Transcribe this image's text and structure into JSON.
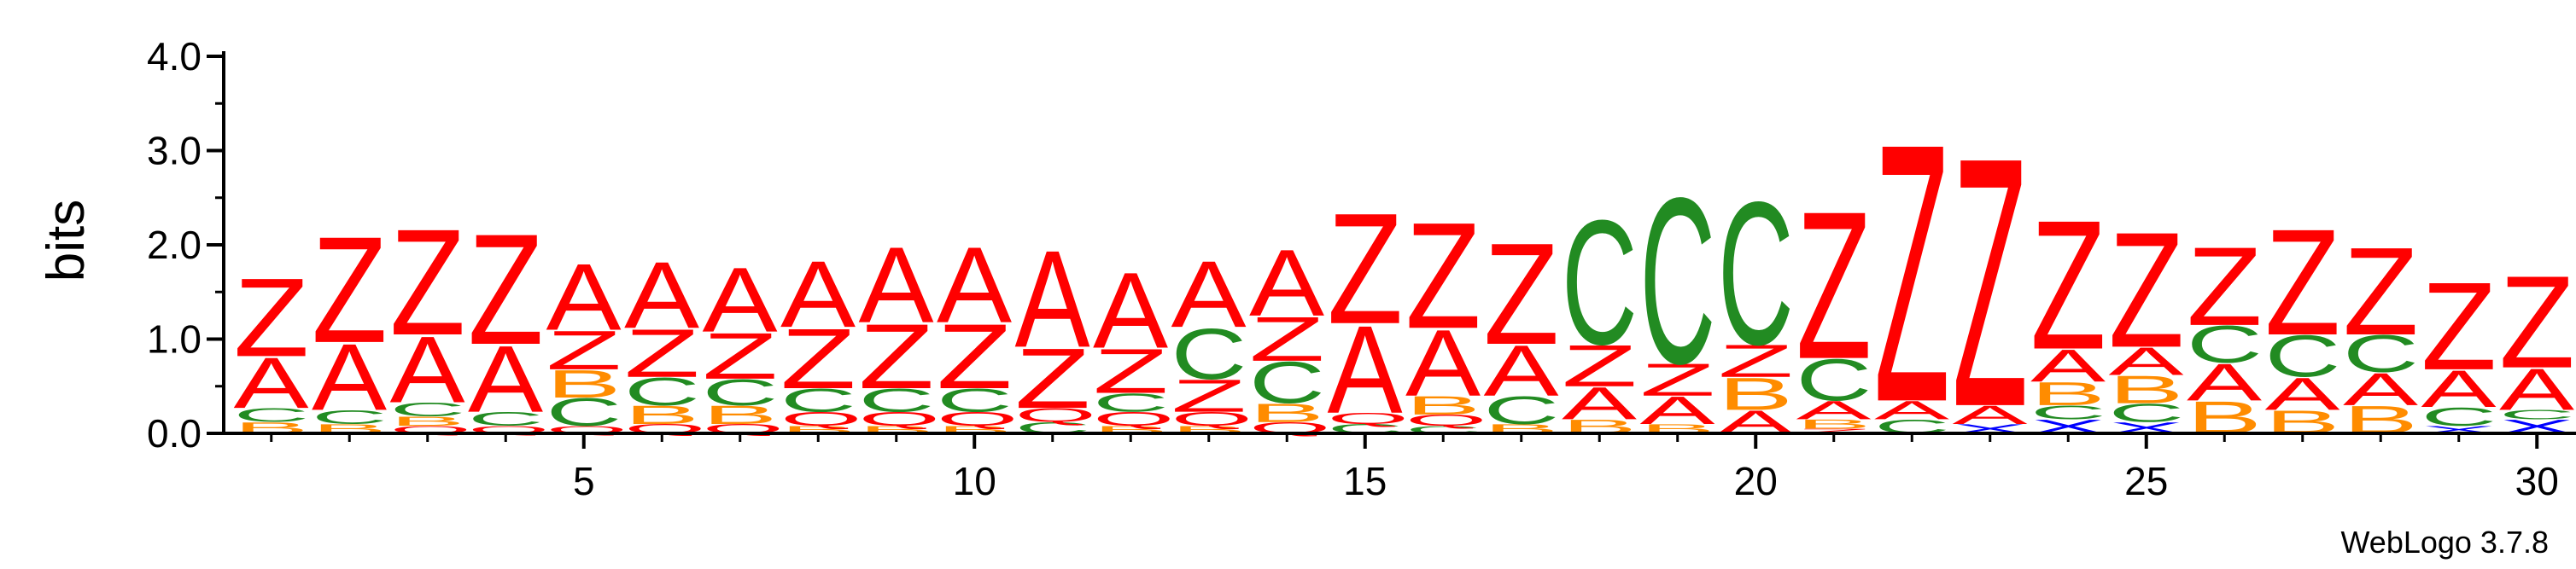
{
  "chart_data": {
    "type": "sequence-logo",
    "ylabel": "bits",
    "ylim": [
      0,
      4.0
    ],
    "y_ticks": [
      "0.0",
      "1.0",
      "2.0",
      "3.0",
      "4.0"
    ],
    "x_ticks": [
      "5",
      "10",
      "15",
      "20",
      "25",
      "30"
    ],
    "x_tick_values": [
      5,
      10,
      15,
      20,
      25,
      30
    ],
    "positions_count": 30,
    "credit": "WebLogo 3.7.8",
    "colors": {
      "Z": "#ff0000",
      "A": "#ff0000",
      "Q": "#ff0000",
      "C": "#228b22",
      "B": "#ff8c00",
      "X": "#0000ff"
    },
    "stacks": [
      {
        "position": 1,
        "letters": [
          [
            "B",
            0.12
          ],
          [
            "C",
            0.15
          ],
          [
            "A",
            0.55
          ],
          [
            "Z",
            0.85
          ]
        ]
      },
      {
        "position": 2,
        "letters": [
          [
            "B",
            0.1
          ],
          [
            "C",
            0.15
          ],
          [
            "A",
            0.72
          ],
          [
            "Z",
            1.15
          ]
        ]
      },
      {
        "position": 3,
        "letters": [
          [
            "Q",
            0.08
          ],
          [
            "B",
            0.1
          ],
          [
            "C",
            0.15
          ],
          [
            "A",
            0.72
          ],
          [
            "Z",
            1.15
          ]
        ]
      },
      {
        "position": 4,
        "letters": [
          [
            "Q",
            0.08
          ],
          [
            "C",
            0.15
          ],
          [
            "A",
            0.72
          ],
          [
            "Z",
            1.2
          ]
        ]
      },
      {
        "position": 5,
        "letters": [
          [
            "Q",
            0.08
          ],
          [
            "C",
            0.3
          ],
          [
            "B",
            0.3
          ],
          [
            "Z",
            0.42
          ],
          [
            "A",
            0.72
          ]
        ]
      },
      {
        "position": 6,
        "letters": [
          [
            "Q",
            0.1
          ],
          [
            "B",
            0.2
          ],
          [
            "C",
            0.3
          ],
          [
            "Z",
            0.52
          ],
          [
            "A",
            0.72
          ]
        ]
      },
      {
        "position": 7,
        "letters": [
          [
            "Q",
            0.1
          ],
          [
            "B",
            0.2
          ],
          [
            "C",
            0.28
          ],
          [
            "Z",
            0.5
          ],
          [
            "A",
            0.7
          ]
        ]
      },
      {
        "position": 8,
        "letters": [
          [
            "B",
            0.08
          ],
          [
            "Q",
            0.15
          ],
          [
            "C",
            0.25
          ],
          [
            "Z",
            0.65
          ],
          [
            "A",
            0.72
          ]
        ]
      },
      {
        "position": 9,
        "letters": [
          [
            "B",
            0.08
          ],
          [
            "Q",
            0.15
          ],
          [
            "C",
            0.25
          ],
          [
            "Z",
            0.7
          ],
          [
            "A",
            0.82
          ]
        ]
      },
      {
        "position": 10,
        "letters": [
          [
            "B",
            0.08
          ],
          [
            "Q",
            0.15
          ],
          [
            "C",
            0.25
          ],
          [
            "Z",
            0.7
          ],
          [
            "A",
            0.82
          ]
        ]
      },
      {
        "position": 11,
        "letters": [
          [
            "C",
            0.12
          ],
          [
            "Q",
            0.15
          ],
          [
            "Z",
            0.65
          ],
          [
            "A",
            1.05
          ]
        ]
      },
      {
        "position": 12,
        "letters": [
          [
            "B",
            0.08
          ],
          [
            "Q",
            0.15
          ],
          [
            "C",
            0.2
          ],
          [
            "Z",
            0.48
          ],
          [
            "A",
            0.82
          ]
        ]
      },
      {
        "position": 13,
        "letters": [
          [
            "B",
            0.08
          ],
          [
            "Q",
            0.15
          ],
          [
            "Z",
            0.35
          ],
          [
            "C",
            0.55
          ],
          [
            "A",
            0.72
          ]
        ]
      },
      {
        "position": 14,
        "letters": [
          [
            "Q",
            0.12
          ],
          [
            "B",
            0.2
          ],
          [
            "C",
            0.45
          ],
          [
            "Z",
            0.48
          ],
          [
            "A",
            0.72
          ]
        ]
      },
      {
        "position": 15,
        "letters": [
          [
            "C",
            0.1
          ],
          [
            "Q",
            0.12
          ],
          [
            "A",
            0.95
          ],
          [
            "Z",
            1.2
          ]
        ]
      },
      {
        "position": 16,
        "letters": [
          [
            "C",
            0.08
          ],
          [
            "Q",
            0.12
          ],
          [
            "B",
            0.2
          ],
          [
            "A",
            0.72
          ],
          [
            "Z",
            1.15
          ]
        ]
      },
      {
        "position": 17,
        "letters": [
          [
            "B",
            0.1
          ],
          [
            "C",
            0.3
          ],
          [
            "A",
            0.55
          ],
          [
            "Z",
            1.1
          ]
        ]
      },
      {
        "position": 18,
        "letters": [
          [
            "B",
            0.15
          ],
          [
            "A",
            0.35
          ],
          [
            "Z",
            0.45
          ],
          [
            "C",
            1.35
          ]
        ]
      },
      {
        "position": 19,
        "letters": [
          [
            "B",
            0.1
          ],
          [
            "A",
            0.3
          ],
          [
            "Z",
            0.35
          ],
          [
            "C",
            1.8
          ]
        ]
      },
      {
        "position": 20,
        "letters": [
          [
            "A",
            0.25
          ],
          [
            "B",
            0.35
          ],
          [
            "Z",
            0.35
          ],
          [
            "C",
            1.55
          ]
        ]
      },
      {
        "position": 21,
        "letters": [
          [
            "Z",
            0.05
          ],
          [
            "B",
            0.1
          ],
          [
            "A",
            0.2
          ],
          [
            "C",
            0.45
          ],
          [
            "Z",
            1.6
          ]
        ]
      },
      {
        "position": 22,
        "letters": [
          [
            "C",
            0.15
          ],
          [
            "A",
            0.2
          ],
          [
            "Z",
            2.8
          ]
        ]
      },
      {
        "position": 23,
        "letters": [
          [
            "X",
            0.1
          ],
          [
            "A",
            0.2
          ],
          [
            "Z",
            2.7
          ]
        ]
      },
      {
        "position": 24,
        "letters": [
          [
            "X",
            0.15
          ],
          [
            "C",
            0.15
          ],
          [
            "B",
            0.25
          ],
          [
            "A",
            0.35
          ],
          [
            "Z",
            1.4
          ]
        ]
      },
      {
        "position": 25,
        "letters": [
          [
            "X",
            0.12
          ],
          [
            "C",
            0.2
          ],
          [
            "B",
            0.3
          ],
          [
            "A",
            0.3
          ],
          [
            "Z",
            1.25
          ]
        ]
      },
      {
        "position": 26,
        "letters": [
          [
            "B",
            0.35
          ],
          [
            "A",
            0.4
          ],
          [
            "C",
            0.4
          ],
          [
            "Z",
            0.85
          ]
        ]
      },
      {
        "position": 27,
        "letters": [
          [
            "B",
            0.25
          ],
          [
            "A",
            0.35
          ],
          [
            "C",
            0.45
          ],
          [
            "Z",
            1.15
          ]
        ]
      },
      {
        "position": 28,
        "letters": [
          [
            "B",
            0.3
          ],
          [
            "A",
            0.35
          ],
          [
            "C",
            0.4
          ],
          [
            "Z",
            0.95
          ]
        ]
      },
      {
        "position": 29,
        "letters": [
          [
            "X",
            0.08
          ],
          [
            "C",
            0.2
          ],
          [
            "A",
            0.4
          ],
          [
            "Z",
            0.95
          ]
        ]
      },
      {
        "position": 30,
        "letters": [
          [
            "X",
            0.15
          ],
          [
            "C",
            0.1
          ],
          [
            "A",
            0.45
          ],
          [
            "Z",
            1.0
          ]
        ]
      }
    ]
  }
}
